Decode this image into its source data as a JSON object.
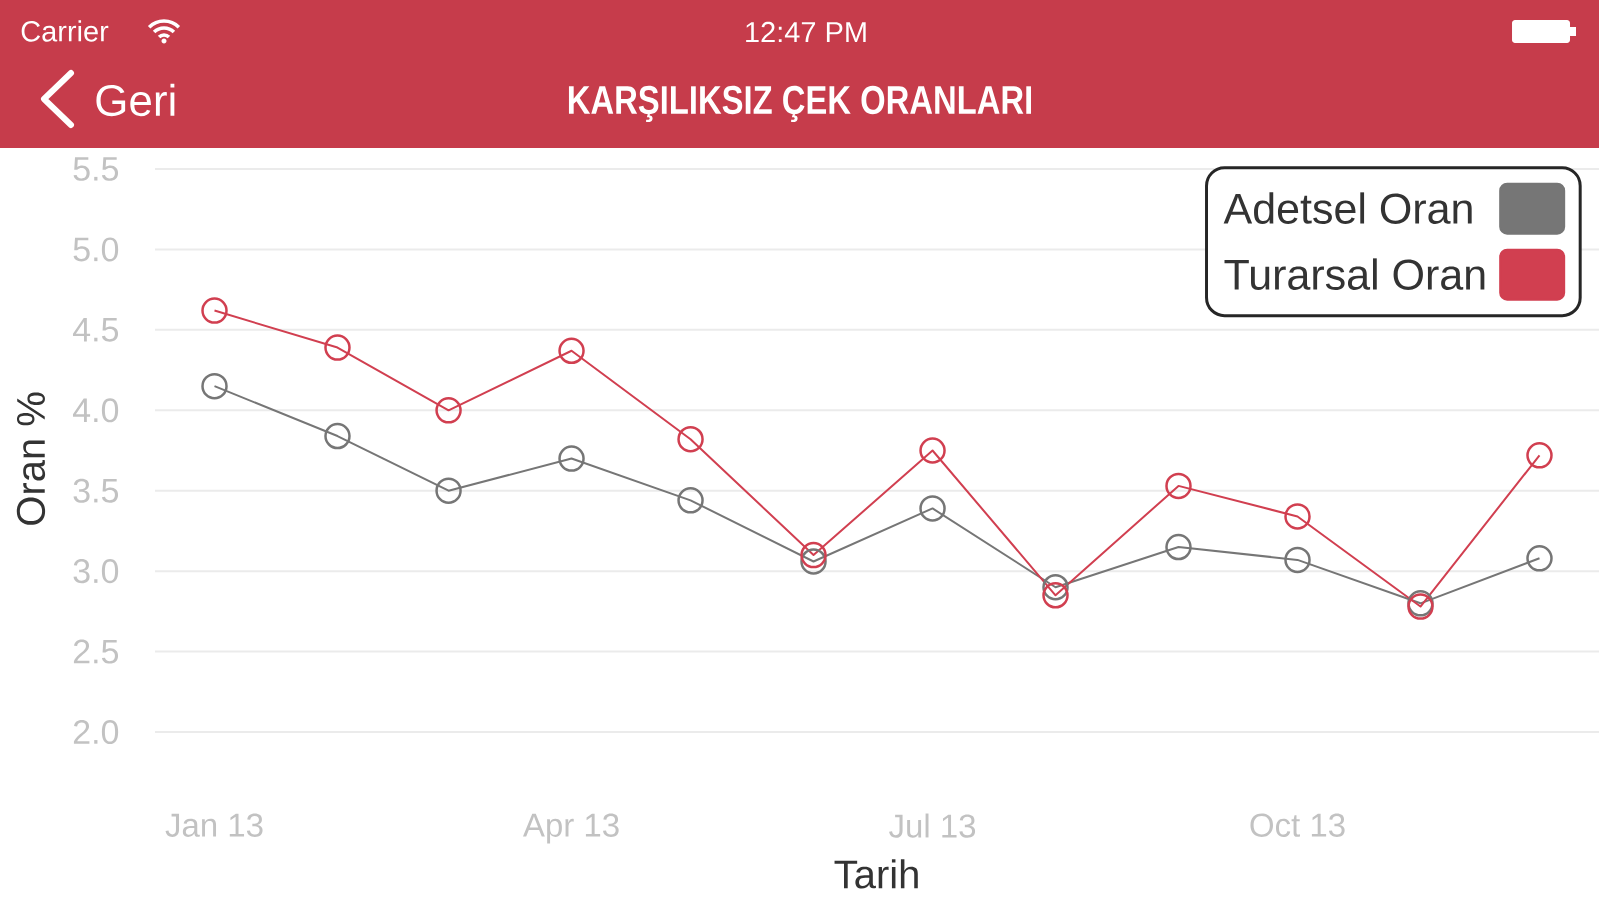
{
  "chart_data": {
    "type": "line",
    "title": "KARŞILIKSIZ ÇEK ORANLARI",
    "xlabel": "Tarih",
    "ylabel": "Oran %",
    "annotations": [
      "Carrier",
      "12:47 PM",
      "Geri"
    ],
    "x": [
      "2013-01",
      "2013-02",
      "2013-03",
      "2013-04",
      "2013-05",
      "2013-06",
      "2013-07",
      "2013-08",
      "2013-09",
      "2013-10",
      "2013-11",
      "2013-12"
    ],
    "series": [
      {
        "name": "Adetsel Oran",
        "color": "#767676",
        "values": [
          4.15,
          3.84,
          3.5,
          3.7,
          3.44,
          3.06,
          3.39,
          2.9,
          3.15,
          3.07,
          2.8,
          3.08
        ]
      },
      {
        "name": "Turarsal Oran",
        "color": "#d13f50",
        "values": [
          4.62,
          4.39,
          4.0,
          4.37,
          3.82,
          3.1,
          3.75,
          2.85,
          3.53,
          3.34,
          2.78,
          3.72
        ]
      }
    ],
    "xlim": [
      "2012-12-17",
      "2013-12-16"
    ],
    "xticks": [
      {
        "value": "2013-01",
        "label": "Jan 13"
      },
      {
        "value": "2013-04",
        "label": "Apr 13"
      },
      {
        "value": "2013-07",
        "label": "Jul 13"
      },
      {
        "value": "2013-10",
        "label": "Oct 13"
      }
    ],
    "ylim": [
      2.0,
      5.5
    ],
    "yticks": [
      {
        "value": 2,
        "label": "2.0"
      },
      2.5,
      {
        "value": 3,
        "label": "3.0"
      },
      3.5,
      {
        "value": 4,
        "label": "4.0"
      },
      4.5,
      {
        "value": 5,
        "label": "5.0"
      },
      5.5
    ],
    "grid": "y",
    "legend": "top right",
    "marker": "circle",
    "line_style": "solid"
  }
}
